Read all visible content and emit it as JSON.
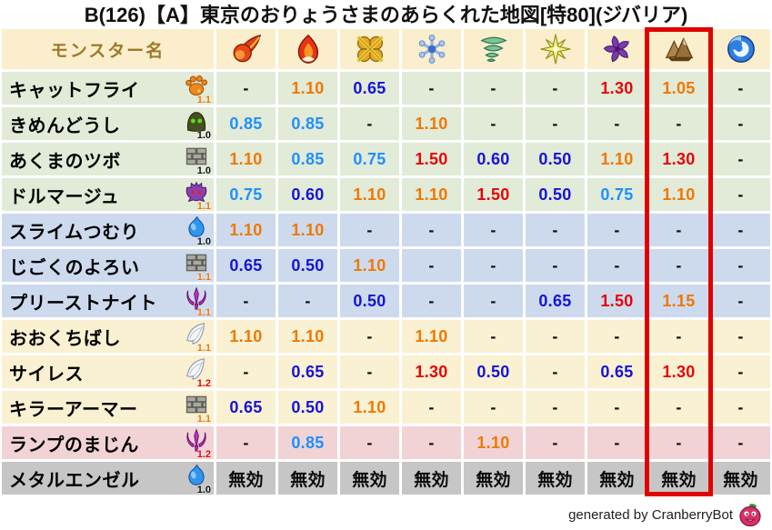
{
  "title": "B(126)【A】東京のおりょうさまのあらくれた地図[特80](ジバリア)",
  "header": {
    "monster_col": "モンスター名",
    "elements": [
      "fireball",
      "flame",
      "explosion",
      "snowflake",
      "tornado",
      "spark",
      "pinwheel",
      "mountain",
      "wave"
    ],
    "highlighted_element": "mountain",
    "highlighted_index": 7
  },
  "rows": [
    {
      "name": "キャットフライ",
      "family": "paw",
      "family_rate": "1.1",
      "rate_color": "orange",
      "bg": "green",
      "values": [
        "-",
        "1.10",
        "0.65",
        "-",
        "-",
        "-",
        "1.30",
        "1.05",
        "-"
      ]
    },
    {
      "name": "きめんどうし",
      "family": "hood",
      "family_rate": "1.0",
      "rate_color": "black",
      "bg": "green",
      "values": [
        "0.85",
        "0.85",
        "-",
        "1.10",
        "-",
        "-",
        "-",
        "-",
        "-"
      ]
    },
    {
      "name": "あくまのツボ",
      "family": "bricks",
      "family_rate": "1.0",
      "rate_color": "black",
      "bg": "green",
      "values": [
        "1.10",
        "0.85",
        "0.75",
        "1.50",
        "0.60",
        "0.50",
        "1.10",
        "1.30",
        "-"
      ]
    },
    {
      "name": "ドルマージュ",
      "family": "devil",
      "family_rate": "1.1",
      "rate_color": "orange",
      "bg": "green",
      "values": [
        "0.75",
        "0.60",
        "1.10",
        "1.10",
        "1.50",
        "0.50",
        "0.75",
        "1.10",
        "-"
      ]
    },
    {
      "name": "スライムつむり",
      "family": "slime",
      "family_rate": "1.0",
      "rate_color": "black",
      "bg": "blue",
      "values": [
        "1.10",
        "1.10",
        "-",
        "-",
        "-",
        "-",
        "-",
        "-",
        "-"
      ]
    },
    {
      "name": "じごくのよろい",
      "family": "bricks",
      "family_rate": "1.1",
      "rate_color": "orange",
      "bg": "blue",
      "values": [
        "0.65",
        "0.50",
        "1.10",
        "-",
        "-",
        "-",
        "-",
        "-",
        "-"
      ]
    },
    {
      "name": "プリーストナイト",
      "family": "trident",
      "family_rate": "1.1",
      "rate_color": "orange",
      "bg": "blue",
      "values": [
        "-",
        "-",
        "0.50",
        "-",
        "-",
        "0.65",
        "1.50",
        "1.15",
        "-"
      ]
    },
    {
      "name": "おおくちばし",
      "family": "wing",
      "family_rate": "1.1",
      "rate_color": "orange",
      "bg": "cream",
      "values": [
        "1.10",
        "1.10",
        "-",
        "1.10",
        "-",
        "-",
        "-",
        "-",
        "-"
      ]
    },
    {
      "name": "サイレス",
      "family": "wing",
      "family_rate": "1.2",
      "rate_color": "red",
      "bg": "cream",
      "values": [
        "-",
        "0.65",
        "-",
        "1.30",
        "0.50",
        "-",
        "0.65",
        "1.30",
        "-"
      ]
    },
    {
      "name": "キラーアーマー",
      "family": "bricks",
      "family_rate": "1.1",
      "rate_color": "orange",
      "bg": "cream",
      "values": [
        "0.65",
        "0.50",
        "1.10",
        "-",
        "-",
        "-",
        "-",
        "-",
        "-"
      ]
    },
    {
      "name": "ランプのまじん",
      "family": "trident",
      "family_rate": "1.2",
      "rate_color": "red",
      "bg": "pink",
      "values": [
        "-",
        "0.85",
        "-",
        "-",
        "1.10",
        "-",
        "-",
        "-",
        "-"
      ]
    },
    {
      "name": "メタルエンゼル",
      "family": "slime",
      "family_rate": "1.0",
      "rate_color": "black",
      "bg": "gray",
      "values": [
        "無効",
        "無効",
        "無効",
        "無効",
        "無効",
        "無効",
        "無効",
        "無効",
        "無効"
      ]
    }
  ],
  "footer": {
    "text": "generated by CranberryBot",
    "icon": "cranberry"
  },
  "colors": {
    "accent_box": "#E00000",
    "value_up_small": "#F07800",
    "value_up_big": "#E60505",
    "value_down_small": "#1E90FF",
    "value_down_big": "#1414D8",
    "header_bg": "#FAEECC",
    "header_text": "#9C7A28",
    "row_green": "#E2EAD8",
    "row_blue": "#CDDAEE",
    "row_cream": "#FAF0D2",
    "row_pink": "#F1D3D6",
    "row_gray": "#C6C6C6"
  },
  "chart_data": {
    "type": "table",
    "title": "B(126)【A】東京のおりょうさまのあらくれた地図[特80](ジバリア)",
    "columns": [
      "モンスター名",
      "fireball",
      "flame",
      "explosion",
      "snowflake",
      "tornado",
      "spark",
      "pinwheel",
      "mountain",
      "wave"
    ],
    "highlighted_column": "mountain",
    "rows": [
      [
        "キャットフライ",
        "-",
        "1.10",
        "0.65",
        "-",
        "-",
        "-",
        "1.30",
        "1.05",
        "-"
      ],
      [
        "きめんどうし",
        "0.85",
        "0.85",
        "-",
        "1.10",
        "-",
        "-",
        "-",
        "-",
        "-"
      ],
      [
        "あくまのツボ",
        "1.10",
        "0.85",
        "0.75",
        "1.50",
        "0.60",
        "0.50",
        "1.10",
        "1.30",
        "-"
      ],
      [
        "ドルマージュ",
        "0.75",
        "0.60",
        "1.10",
        "1.10",
        "1.50",
        "0.50",
        "0.75",
        "1.10",
        "-"
      ],
      [
        "スライムつむり",
        "1.10",
        "1.10",
        "-",
        "-",
        "-",
        "-",
        "-",
        "-",
        "-"
      ],
      [
        "じごくのよろい",
        "0.65",
        "0.50",
        "1.10",
        "-",
        "-",
        "-",
        "-",
        "-",
        "-"
      ],
      [
        "プリーストナイト",
        "-",
        "-",
        "0.50",
        "-",
        "-",
        "0.65",
        "1.50",
        "1.15",
        "-"
      ],
      [
        "おおくちばし",
        "1.10",
        "1.10",
        "-",
        "1.10",
        "-",
        "-",
        "-",
        "-",
        "-"
      ],
      [
        "サイレス",
        "-",
        "0.65",
        "-",
        "1.30",
        "0.50",
        "-",
        "0.65",
        "1.30",
        "-"
      ],
      [
        "キラーアーマー",
        "0.65",
        "0.50",
        "1.10",
        "-",
        "-",
        "-",
        "-",
        "-",
        "-"
      ],
      [
        "ランプのまじん",
        "-",
        "0.85",
        "-",
        "-",
        "1.10",
        "-",
        "-",
        "-",
        "-"
      ],
      [
        "メタルエンゼル",
        "無効",
        "無効",
        "無効",
        "無効",
        "無効",
        "無効",
        "無効",
        "無効",
        "無効"
      ]
    ]
  }
}
